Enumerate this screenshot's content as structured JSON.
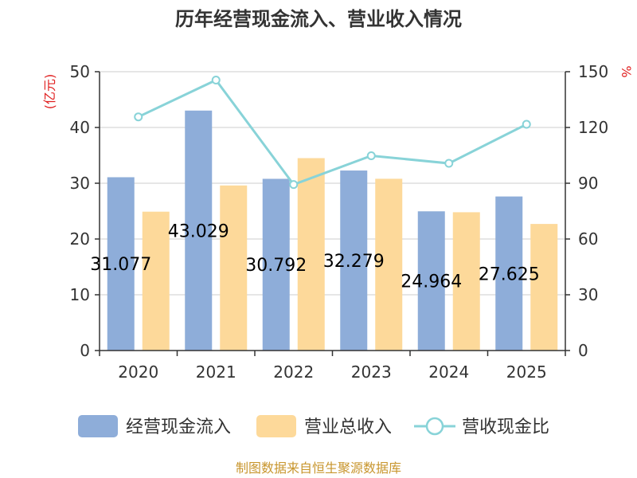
{
  "chart_data": {
    "type": "bar",
    "title": "历年经营现金流入、营业收入情况",
    "categories": [
      "2020",
      "2021",
      "2022",
      "2023",
      "2024",
      "2025"
    ],
    "y_left": {
      "unit": "(亿元)",
      "range": [
        0,
        50
      ],
      "ticks": [
        "0",
        "10",
        "20",
        "30",
        "40",
        "50"
      ]
    },
    "y_right": {
      "unit": "%",
      "range": [
        0,
        150
      ],
      "ticks": [
        "0",
        "30",
        "60",
        "90",
        "120",
        "150"
      ]
    },
    "series": [
      {
        "name": "经营现金流入",
        "type": "bar",
        "axis": "left",
        "color": "#8eadd9",
        "values": [
          31.077,
          43.029,
          30.792,
          32.279,
          24.964,
          27.625
        ],
        "labels": [
          "31.077",
          "43.029",
          "30.792",
          "32.279",
          "24.964",
          "27.625"
        ]
      },
      {
        "name": "营业总收入",
        "type": "bar",
        "axis": "left",
        "color": "#fdd99a",
        "values": [
          24.9,
          29.6,
          34.5,
          30.8,
          24.8,
          22.7
        ]
      },
      {
        "name": "营收现金比",
        "type": "line",
        "axis": "right",
        "color": "#88d3d8",
        "values": [
          125.7,
          145.5,
          89.3,
          104.8,
          100.7,
          121.7
        ]
      }
    ],
    "grid": true,
    "legend_position": "bottom"
  },
  "source_text": "制图数据来自恒生聚源数据库"
}
